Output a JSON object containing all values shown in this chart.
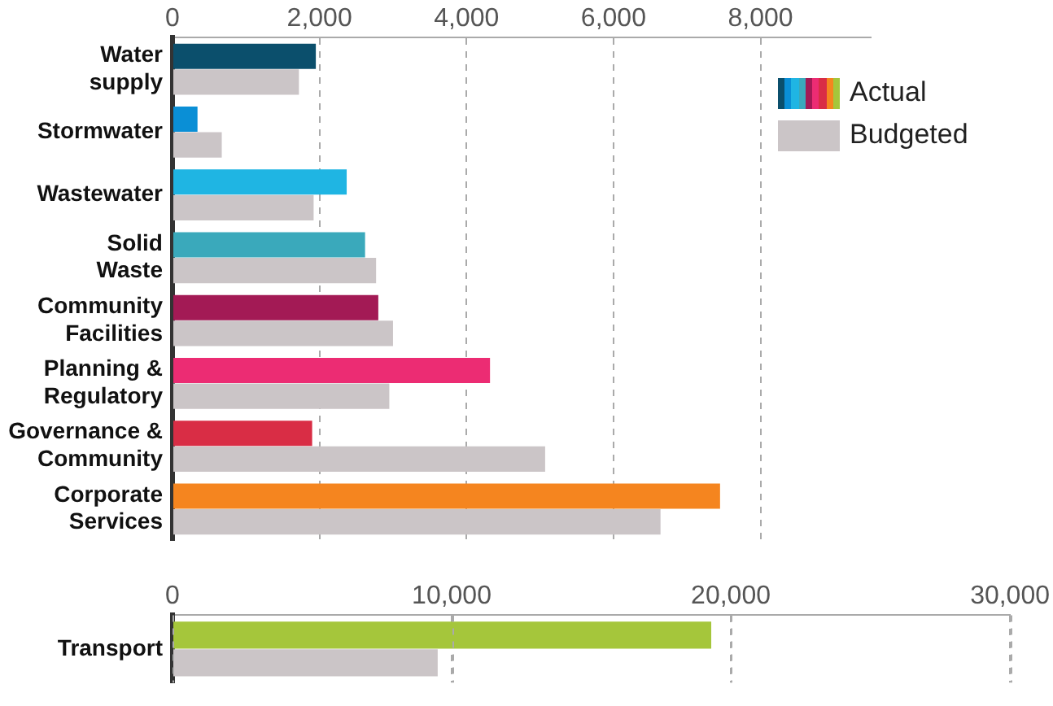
{
  "chart_data": [
    {
      "type": "bar",
      "orientation": "horizontal",
      "categories": [
        "Water supply",
        "Stormwater",
        "Wastewater",
        "Solid Waste",
        "Community Facilities",
        "Planning & Regulatory",
        "Governance & Community",
        "Corporate Services"
      ],
      "series": [
        {
          "name": "Actual",
          "colors": [
            "#0b4f6c",
            "#0a8fd6",
            "#1fb5e3",
            "#3aa9bb",
            "#a31a55",
            "#ec2c73",
            "#d92d45",
            "#f5851f"
          ],
          "values": [
            1950,
            340,
            2370,
            2620,
            2800,
            4320,
            1900,
            7450
          ]
        },
        {
          "name": "Budgeted",
          "color": "#cbc5c7",
          "values": [
            1720,
            670,
            1920,
            2770,
            3000,
            2950,
            5070,
            6640
          ]
        }
      ],
      "xlim": [
        0,
        9500
      ],
      "xticks": [
        0,
        {
          "value": 2000,
          "label": "2,000"
        },
        {
          "value": 4000,
          "label": "4,000"
        },
        {
          "value": 6000,
          "label": "6,000"
        },
        {
          "value": 8000,
          "label": "8,000"
        }
      ],
      "grid": "x",
      "legend": "top right"
    },
    {
      "type": "bar",
      "orientation": "horizontal",
      "categories": [
        "Transport"
      ],
      "series": [
        {
          "name": "Actual",
          "colors": [
            "#a5c63b"
          ],
          "values": [
            19300
          ]
        },
        {
          "name": "Budgeted",
          "color": "#cbc5c7",
          "values": [
            9500
          ]
        }
      ],
      "xlim": [
        0,
        30000
      ],
      "xticks": [
        0,
        {
          "value": 10000,
          "label": "10,000"
        },
        {
          "value": 20000,
          "label": "20,000"
        },
        {
          "value": 30000,
          "label": "30,000"
        }
      ],
      "grid": "x"
    }
  ]
}
